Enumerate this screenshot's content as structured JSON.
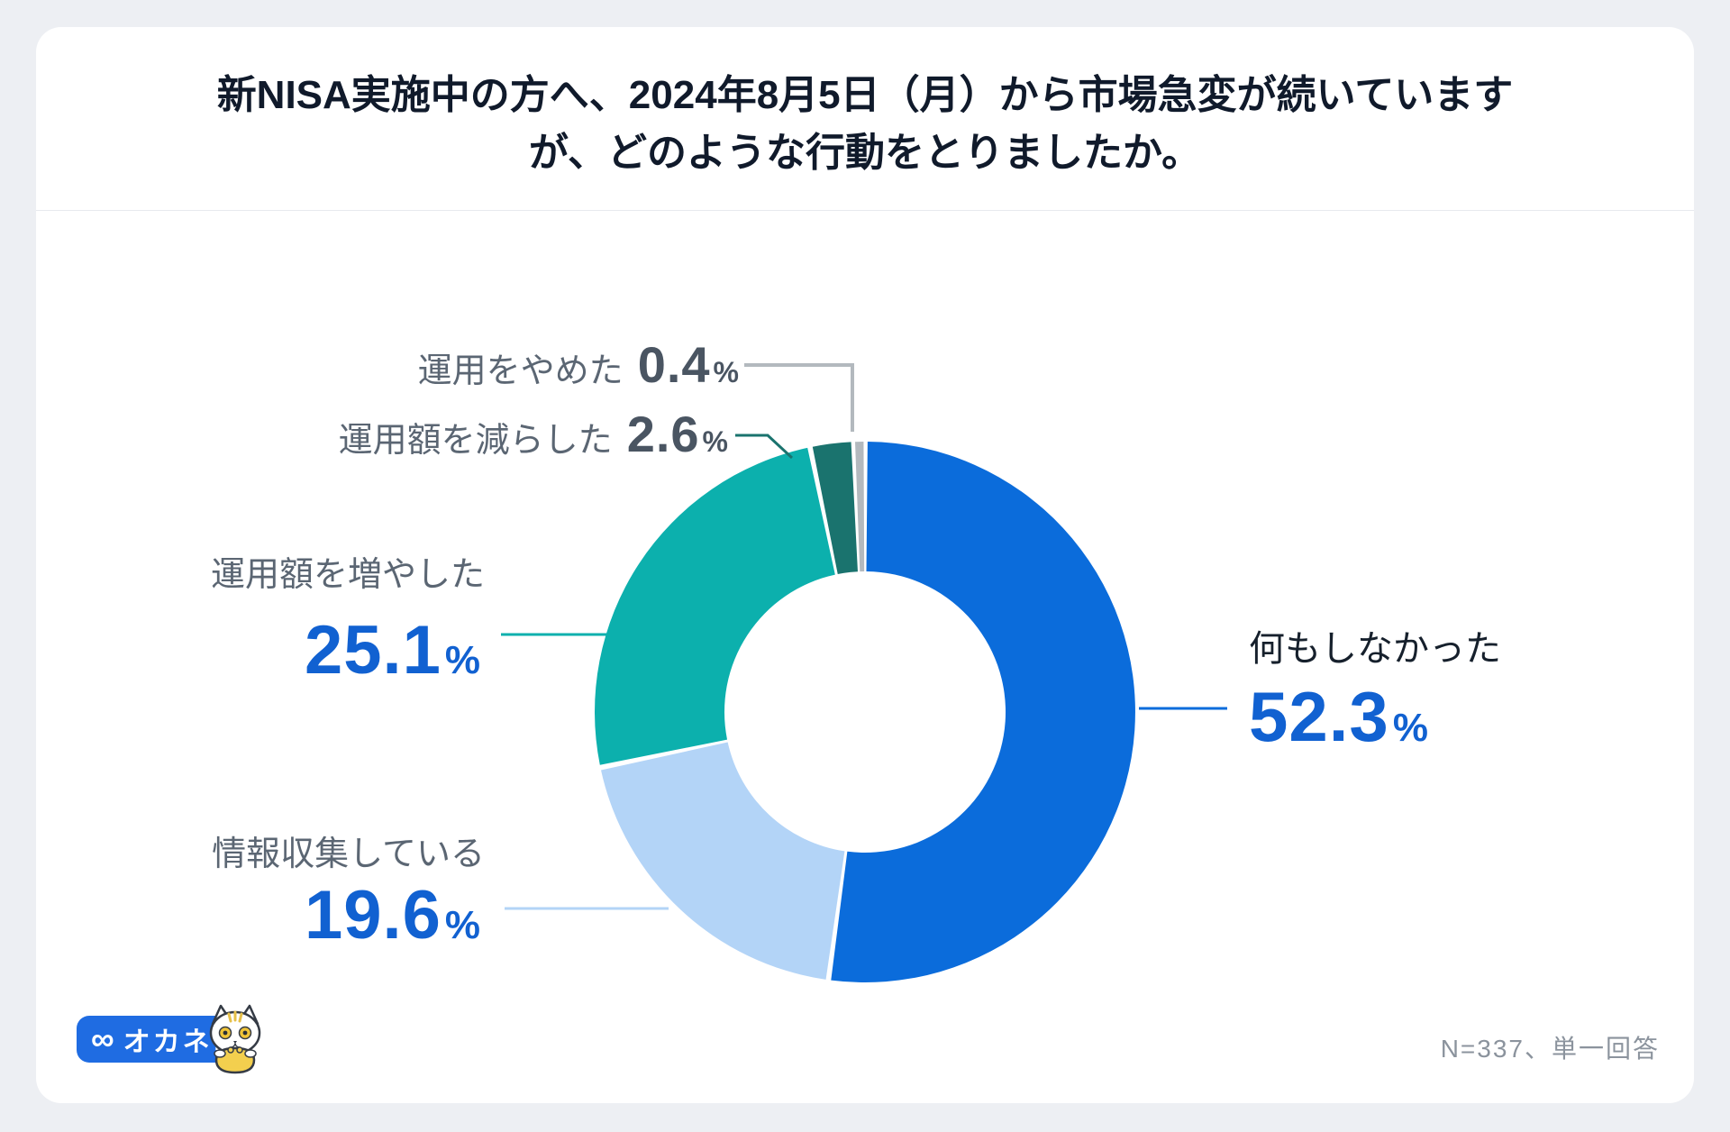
{
  "title": {
    "line1": "新NISA実施中の方へ、2024年8月5日（月）から市場急変が続いています",
    "line2": "が、どのような行動をとりましたか。"
  },
  "chart_data": {
    "type": "pie",
    "donut": true,
    "title": "新NISA実施中の方へ、2024年8月5日（月）から市場急変が続いていますが、どのような行動をとりましたか。",
    "unit": "%",
    "direction": "clockwise",
    "start_angle": "top",
    "inner_radius_ratio": 0.52,
    "min_slice_deg": 2.4,
    "legend_position": "callout-labels",
    "slices": [
      {
        "key": "did-nothing",
        "label": "何もしなかった",
        "value": 52.3,
        "color": "#0b6cdb"
      },
      {
        "key": "gathering-info",
        "label": "情報収集している",
        "value": 19.6,
        "color": "#b3d4f7"
      },
      {
        "key": "increased-amount",
        "label": "運用額を増やした",
        "value": 25.1,
        "color": "#0cb0ad"
      },
      {
        "key": "decreased-amount",
        "label": "運用額を減らした",
        "value": 2.6,
        "color": "#1a736e"
      },
      {
        "key": "stopped-investing",
        "label": "運用をやめた",
        "value": 0.4,
        "color": "#b3b9be"
      }
    ],
    "note": "N=337、単一回答"
  },
  "style_colors": {
    "value_blue": "#1161d1",
    "small_value_gray": "#4a5562",
    "label_gray": "#5b6673",
    "label_dark": "#16202c",
    "title_dark": "#101a2b",
    "note_gray": "#8b939d",
    "brand_blue": "#1f6ce2",
    "card_bg": "#ffffff",
    "page_bg": "#edeff3"
  },
  "footer": {
    "note": "N=337、単一回答",
    "logo": {
      "text": "オカネコ"
    }
  },
  "icons": {
    "logo_mark": "∞",
    "mascot": "cat-with-coin-purse"
  }
}
